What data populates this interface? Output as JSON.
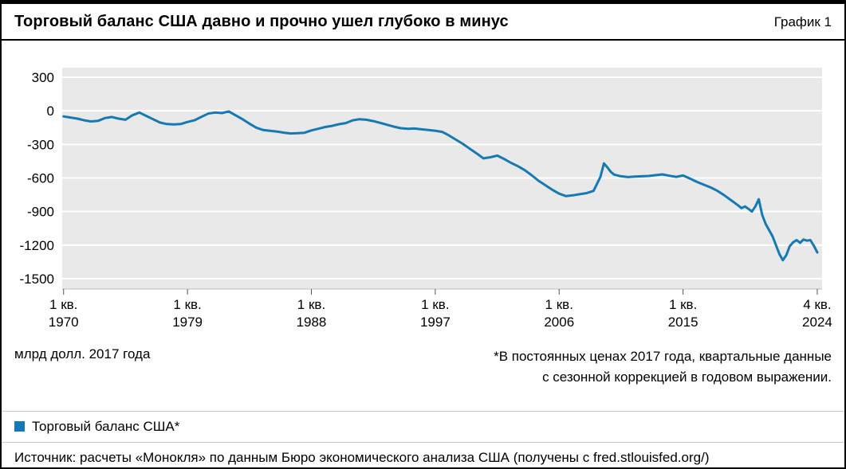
{
  "header": {
    "title": "Торговый баланс США давно и прочно ушел глубоко в минус",
    "tag": "График 1"
  },
  "meta": {
    "unit_label": "млрд долл. 2017 года",
    "footnote_line1": "*В постоянных ценах 2017 года, квартальные данные",
    "footnote_line2": "с сезонной коррекцией в годовом выражении."
  },
  "legend": {
    "label": "Торговый баланс США*",
    "color": "#1579b5"
  },
  "source": "Источник: расчеты «Монокля» по данным Бюро экономического анализа США (получены с fred.stlouisfed.org/)",
  "chart_data": {
    "type": "line",
    "title": "Торговый баланс США давно и прочно ушел глубоко в минус",
    "ylabel": "млрд долл. 2017 года",
    "xlim": [
      1969.9,
      2025.1
    ],
    "ylim": [
      -1500,
      300
    ],
    "grid": "horizontal-white-on-gray",
    "plot_bg": "#e9e9e9",
    "legend_position": "bottom-left",
    "y_ticks": [
      300,
      0,
      -300,
      -600,
      -900,
      -1200,
      -1500
    ],
    "x_ticks": [
      {
        "line1": "1 кв.",
        "line2": "1970",
        "x": 1970.0
      },
      {
        "line1": "1 кв.",
        "line2": "1979",
        "x": 1979.0
      },
      {
        "line1": "1 кв.",
        "line2": "1988",
        "x": 1988.0
      },
      {
        "line1": "1 кв.",
        "line2": "1997",
        "x": 1997.0
      },
      {
        "line1": "1 кв.",
        "line2": "2006",
        "x": 2006.0
      },
      {
        "line1": "1 кв.",
        "line2": "2015",
        "x": 2015.0
      },
      {
        "line1": "4 кв.",
        "line2": "2024",
        "x": 2024.75
      }
    ],
    "series": [
      {
        "name": "Торговый баланс США*",
        "color": "#1579b5",
        "x": [
          1970,
          1970.5,
          1971,
          1971.5,
          1972,
          1972.5,
          1973,
          1973.5,
          1974,
          1974.5,
          1975,
          1975.5,
          1976,
          1976.5,
          1977,
          1977.5,
          1978,
          1978.5,
          1979,
          1979.5,
          1980,
          1980.5,
          1981,
          1981.5,
          1982,
          1982.5,
          1983,
          1983.5,
          1984,
          1984.5,
          1985,
          1985.5,
          1986,
          1986.5,
          1987,
          1987.5,
          1988,
          1988.5,
          1989,
          1989.5,
          1990,
          1990.5,
          1991,
          1991.5,
          1992,
          1992.5,
          1993,
          1993.5,
          1994,
          1994.5,
          1995,
          1995.5,
          1996,
          1996.5,
          1997,
          1997.5,
          1998,
          1998.5,
          1999,
          1999.5,
          2000,
          2000.5,
          2001,
          2001.5,
          2002,
          2002.5,
          2003,
          2003.5,
          2004,
          2004.5,
          2005,
          2005.5,
          2006,
          2006.5,
          2007,
          2007.5,
          2008,
          2008.5,
          2009,
          2009.25,
          2009.5,
          2009.75,
          2010,
          2010.5,
          2011,
          2011.5,
          2012,
          2012.5,
          2013,
          2013.5,
          2014,
          2014.5,
          2015,
          2015.5,
          2016,
          2016.5,
          2017,
          2017.5,
          2018,
          2018.5,
          2019,
          2019.25,
          2019.5,
          2019.75,
          2020,
          2020.25,
          2020.5,
          2020.75,
          2021,
          2021.5,
          2022,
          2022.25,
          2022.5,
          2022.75,
          2023,
          2023.25,
          2023.5,
          2023.75,
          2024,
          2024.25,
          2024.5,
          2024.75
        ],
        "y": [
          -50,
          -60,
          -70,
          -85,
          -95,
          -90,
          -65,
          -55,
          -70,
          -80,
          -40,
          -15,
          -45,
          -75,
          -105,
          -118,
          -122,
          -118,
          -100,
          -85,
          -55,
          -25,
          -15,
          -20,
          -5,
          -40,
          -75,
          -115,
          -150,
          -172,
          -178,
          -185,
          -195,
          -202,
          -200,
          -196,
          -175,
          -160,
          -145,
          -135,
          -120,
          -110,
          -85,
          -75,
          -80,
          -92,
          -108,
          -125,
          -142,
          -155,
          -160,
          -158,
          -165,
          -172,
          -178,
          -188,
          -220,
          -258,
          -295,
          -338,
          -380,
          -425,
          -415,
          -400,
          -430,
          -465,
          -495,
          -530,
          -575,
          -625,
          -665,
          -705,
          -740,
          -762,
          -755,
          -745,
          -735,
          -715,
          -590,
          -470,
          -505,
          -545,
          -570,
          -585,
          -592,
          -588,
          -585,
          -582,
          -575,
          -568,
          -580,
          -590,
          -578,
          -605,
          -635,
          -660,
          -685,
          -715,
          -755,
          -800,
          -845,
          -870,
          -855,
          -875,
          -900,
          -855,
          -790,
          -930,
          -1010,
          -1120,
          -1280,
          -1335,
          -1290,
          -1210,
          -1175,
          -1155,
          -1180,
          -1150,
          -1160,
          -1155,
          -1205,
          -1265
        ]
      }
    ]
  }
}
